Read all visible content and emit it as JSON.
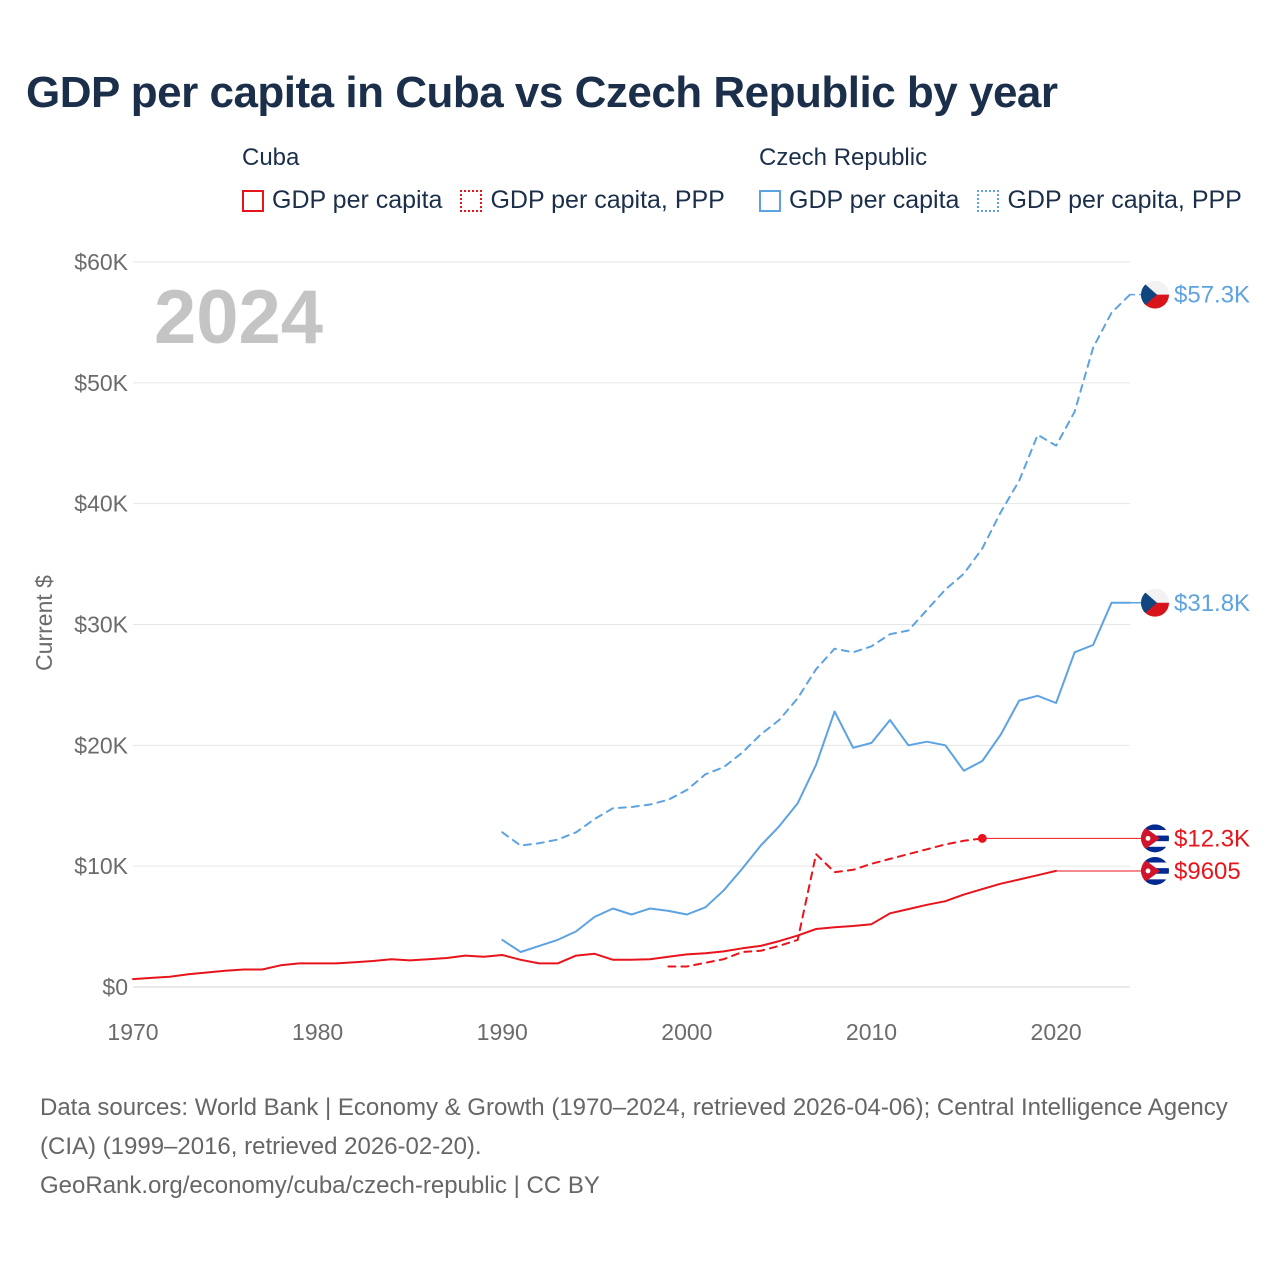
{
  "title": "GDP per capita in Cuba vs Czech Republic by year",
  "legend": {
    "groups": [
      {
        "name": "Cuba",
        "color": "#e8141b",
        "items": [
          {
            "label": "GDP per capita",
            "style": "solid"
          },
          {
            "label": "GDP per capita, PPP",
            "style": "dotted"
          }
        ]
      },
      {
        "name": "Czech Republic",
        "color": "#5da3e2",
        "items": [
          {
            "label": "GDP per capita",
            "style": "solid"
          },
          {
            "label": "GDP per capita, PPP",
            "style": "dotted"
          }
        ]
      }
    ]
  },
  "sources": {
    "line1": "Data sources: World Bank | Economy & Growth (1970–2024, retrieved 2026-04-06); Central Intelligence Agency (CIA) (1999–2016, retrieved 2026-02-20).",
    "line2": "GeoRank.org/economy/cuba/czech-republic | CC BY"
  },
  "chart_data": {
    "type": "line",
    "title": "GDP per capita in Cuba vs Czech Republic by year",
    "year_label": "2024",
    "xlabel": "",
    "ylabel": "Current $",
    "xlim": [
      1970,
      2024
    ],
    "ylim": [
      0,
      60000
    ],
    "x_ticks": [
      1970,
      1980,
      1990,
      2000,
      2010,
      2020
    ],
    "y_ticks": [
      {
        "value": 0,
        "label": "$0"
      },
      {
        "value": 10000,
        "label": "$10K"
      },
      {
        "value": 20000,
        "label": "$20K"
      },
      {
        "value": 30000,
        "label": "$30K"
      },
      {
        "value": 40000,
        "label": "$40K"
      },
      {
        "value": 50000,
        "label": "$50K"
      },
      {
        "value": 60000,
        "label": "$60K"
      }
    ],
    "grid": true,
    "series": [
      {
        "name": "Czech Republic GDP per capita, PPP",
        "country": "Czech Republic",
        "color": "#5da3e2",
        "dash": "dashed",
        "end_label": "$57.3K",
        "flag": "cz",
        "x": [
          1990,
          1991,
          1992,
          1993,
          1994,
          1995,
          1996,
          1997,
          1998,
          1999,
          2000,
          2001,
          2002,
          2003,
          2004,
          2005,
          2006,
          2007,
          2008,
          2009,
          2010,
          2011,
          2012,
          2013,
          2014,
          2015,
          2016,
          2017,
          2018,
          2019,
          2020,
          2021,
          2022,
          2023,
          2024
        ],
        "values": [
          12800,
          11700,
          11900,
          12200,
          12800,
          13900,
          14800,
          14900,
          15100,
          15500,
          16300,
          17600,
          18200,
          19400,
          20900,
          22100,
          23900,
          26300,
          28000,
          27700,
          28200,
          29200,
          29500,
          31200,
          32900,
          34200,
          36300,
          39300,
          41900,
          45700,
          44800,
          47600,
          52900,
          55800,
          57300
        ]
      },
      {
        "name": "Czech Republic GDP per capita",
        "country": "Czech Republic",
        "color": "#5da3e2",
        "dash": "solid",
        "end_label": "$31.8K",
        "flag": "cz",
        "x": [
          1990,
          1991,
          1992,
          1993,
          1994,
          1995,
          1996,
          1997,
          1998,
          1999,
          2000,
          2001,
          2002,
          2003,
          2004,
          2005,
          2006,
          2007,
          2008,
          2009,
          2010,
          2011,
          2012,
          2013,
          2014,
          2015,
          2016,
          2017,
          2018,
          2019,
          2020,
          2021,
          2022,
          2023,
          2024
        ],
        "values": [
          3900,
          2900,
          3400,
          3900,
          4600,
          5800,
          6500,
          6000,
          6500,
          6300,
          6000,
          6600,
          8000,
          9800,
          11700,
          13300,
          15200,
          18400,
          22800,
          19800,
          20200,
          22100,
          20000,
          20300,
          20000,
          17900,
          18700,
          20900,
          23700,
          24100,
          23500,
          27700,
          28300,
          31800,
          31800
        ]
      },
      {
        "name": "Cuba GDP per capita, PPP",
        "country": "Cuba",
        "color": "#e8141b",
        "dash": "dashed",
        "end_label": "$12.3K",
        "flag": "cu",
        "end_marker_year": 2016,
        "x": [
          1999,
          2000,
          2001,
          2002,
          2003,
          2004,
          2005,
          2006,
          2007,
          2008,
          2009,
          2010,
          2011,
          2012,
          2013,
          2014,
          2015,
          2016
        ],
        "values": [
          1700,
          1700,
          2000,
          2300,
          2900,
          3000,
          3400,
          3900,
          11000,
          9500,
          9700,
          10200,
          10600,
          11000,
          11400,
          11800,
          12100,
          12300
        ]
      },
      {
        "name": "Cuba GDP per capita",
        "country": "Cuba",
        "color": "#e8141b",
        "dash": "solid",
        "end_label": "$9605",
        "flag": "cu",
        "x": [
          1970,
          1971,
          1972,
          1973,
          1974,
          1975,
          1976,
          1977,
          1978,
          1979,
          1980,
          1981,
          1982,
          1983,
          1984,
          1985,
          1986,
          1987,
          1988,
          1989,
          1990,
          1991,
          1992,
          1993,
          1994,
          1995,
          1996,
          1997,
          1998,
          1999,
          2000,
          2001,
          2002,
          2003,
          2004,
          2005,
          2006,
          2007,
          2008,
          2009,
          2010,
          2011,
          2012,
          2013,
          2014,
          2015,
          2016,
          2017,
          2018,
          2019,
          2020
        ],
        "values": [
          650,
          750,
          850,
          1050,
          1200,
          1350,
          1450,
          1450,
          1800,
          1950,
          1950,
          1950,
          2050,
          2150,
          2300,
          2200,
          2300,
          2400,
          2600,
          2500,
          2650,
          2250,
          1950,
          1950,
          2600,
          2750,
          2250,
          2250,
          2300,
          2500,
          2700,
          2800,
          2950,
          3200,
          3400,
          3800,
          4250,
          4800,
          4950,
          5050,
          5200,
          6100,
          6450,
          6800,
          7100,
          7650,
          8100,
          8550,
          8900,
          9250,
          9605
        ]
      }
    ]
  }
}
